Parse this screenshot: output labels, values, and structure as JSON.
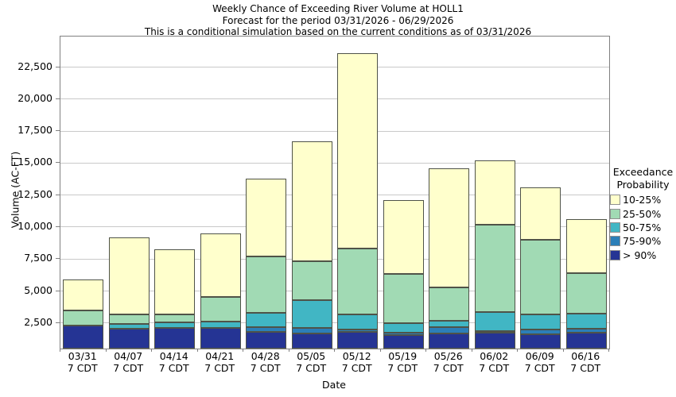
{
  "titles": {
    "line1": "Weekly Chance of Exceeding River Volume at HOLL1",
    "line2": "Forecast for the period 03/31/2026 - 06/29/2026",
    "line3": "This is a conditional simulation based on the current conditions as of 03/31/2026"
  },
  "axes": {
    "y_label": "Volume (AC-FT)",
    "x_label": "Date"
  },
  "legend": {
    "title_line1": "Exceedance",
    "title_line2": "Probability",
    "items_top_to_bottom": [
      "10-25%",
      "25-50%",
      "50-75%",
      "75-90%",
      "> 90%"
    ]
  },
  "colors": {
    "grid": "#c9c9c9",
    "plot_border": "#808080",
    "bar_border": "#4f5348",
    "band_10_25": "#FFFFCC",
    "band_25_50": "#A1DAB4",
    "band_50_75": "#41B6C4",
    "band_75_90": "#2C7FB8",
    "band_gt_90": "#253494"
  },
  "chart_data": {
    "type": "bar",
    "stacked": true,
    "title": "Weekly Chance of Exceeding River Volume at HOLL1",
    "subtitle": "Forecast for the period 03/31/2026 - 06/29/2026",
    "note": "This is a conditional simulation based on the current conditions as of 03/31/2026",
    "xlabel": "Date",
    "ylabel": "Volume (AC-FT)",
    "unit": "AC-FT",
    "grid": true,
    "legend_position": "right",
    "legend_title": "Exceedance Probability",
    "categories": [
      "03/31",
      "04/07",
      "04/14",
      "04/21",
      "04/28",
      "05/05",
      "05/12",
      "05/19",
      "05/26",
      "06/02",
      "06/09",
      "06/16"
    ],
    "x_tick_sublabel": "7 CDT",
    "baseline": 500,
    "ylim": [
      500,
      24900
    ],
    "yticks": [
      2500,
      5000,
      7500,
      10000,
      12500,
      15000,
      17500,
      20000,
      22500
    ],
    "series_note": "bottom-to-top stack order; values are cumulative segment tops in AC-FT measured from the axis baseline",
    "series": [
      {
        "name": "> 90%",
        "color": "#253494",
        "cumulative_top": [
          2330,
          2070,
          2120,
          2130,
          1800,
          1650,
          1800,
          1550,
          1670,
          1740,
          1590,
          1720
        ]
      },
      {
        "name": "75-90%",
        "color": "#2C7FB8",
        "cumulative_top": [
          2330,
          2070,
          2120,
          2130,
          2170,
          2100,
          2010,
          1720,
          2190,
          1890,
          2010,
          2070
        ]
      },
      {
        "name": "50-75%",
        "color": "#41B6C4",
        "cumulative_top": [
          2330,
          2440,
          2520,
          2580,
          3320,
          4270,
          3200,
          2480,
          2660,
          3360,
          3200,
          3240
        ]
      },
      {
        "name": "25-50%",
        "color": "#A1DAB4",
        "cumulative_top": [
          3500,
          3150,
          3150,
          4550,
          7690,
          7310,
          8340,
          6350,
          5300,
          10200,
          9000,
          6390
        ]
      },
      {
        "name": "10-25%",
        "color": "#FFFFCC",
        "cumulative_top": [
          5900,
          9200,
          8250,
          9480,
          13800,
          16700,
          23600,
          12100,
          14600,
          15200,
          13100,
          10600
        ]
      }
    ]
  }
}
